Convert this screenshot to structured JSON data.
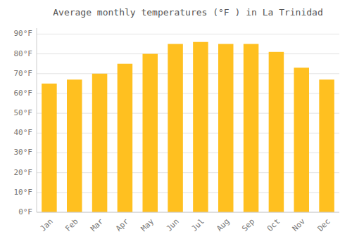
{
  "chart_data": {
    "type": "bar",
    "title": "Average monthly temperatures (°F ) in La Trinidad",
    "categories": [
      "Jan",
      "Feb",
      "Mar",
      "Apr",
      "May",
      "Jun",
      "Jul",
      "Aug",
      "Sep",
      "Oct",
      "Nov",
      "Dec"
    ],
    "values": [
      65,
      67,
      70,
      75,
      80,
      85,
      86,
      85,
      85,
      81,
      73,
      67
    ],
    "color": "#FFC020",
    "ylim": [
      0,
      93
    ],
    "yticks": [
      {
        "value": 0,
        "label": "0°F"
      },
      {
        "value": 10,
        "label": "10°F"
      },
      {
        "value": 20,
        "label": "20°F"
      },
      {
        "value": 30,
        "label": "30°F"
      },
      {
        "value": 40,
        "label": "40°F"
      },
      {
        "value": 50,
        "label": "50°F"
      },
      {
        "value": 60,
        "label": "60°F"
      },
      {
        "value": 70,
        "label": "70°F"
      },
      {
        "value": 80,
        "label": "80°F"
      },
      {
        "value": 90,
        "label": "90°F"
      }
    ],
    "grid": true
  }
}
